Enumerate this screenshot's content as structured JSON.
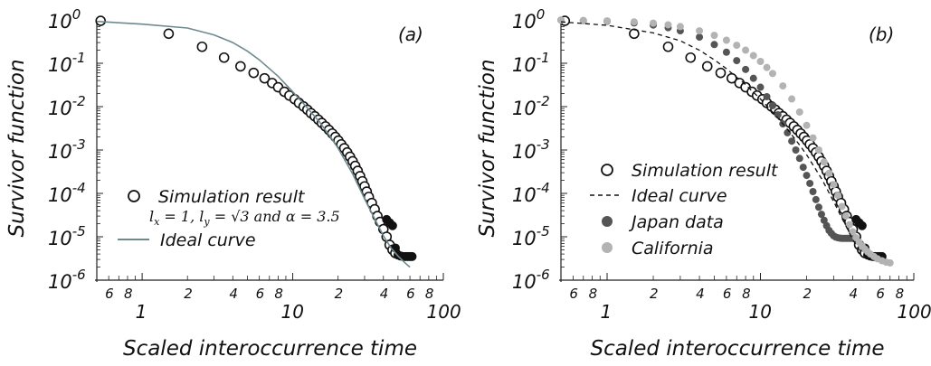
{
  "chart_data": [
    {
      "panel": "(a)",
      "type": "scatter",
      "xscale": "log",
      "yscale": "log",
      "xlim": [
        0.5,
        100
      ],
      "ylim": [
        1e-06,
        1
      ],
      "xlabel": "Scaled interoccurrence time",
      "ylabel": "Survivor function",
      "x_major_ticks": [
        {
          "value": 1,
          "label": "1"
        },
        {
          "value": 10,
          "label": "10"
        },
        {
          "value": 100,
          "label": "100"
        }
      ],
      "x_minor_labels": [
        {
          "value": 0.6,
          "label": "6"
        },
        {
          "value": 0.8,
          "label": "8"
        },
        {
          "value": 2,
          "label": "2"
        },
        {
          "value": 4,
          "label": "4"
        },
        {
          "value": 6,
          "label": "6"
        },
        {
          "value": 8,
          "label": "8"
        },
        {
          "value": 20,
          "label": "2"
        },
        {
          "value": 40,
          "label": "4"
        },
        {
          "value": 60,
          "label": "6"
        },
        {
          "value": 80,
          "label": "8"
        }
      ],
      "y_ticks": [
        {
          "value": 1,
          "base": "10",
          "exp": "0"
        },
        {
          "value": 0.1,
          "base": "10",
          "exp": "-1"
        },
        {
          "value": 0.01,
          "base": "10",
          "exp": "-2"
        },
        {
          "value": 0.001,
          "base": "10",
          "exp": "-3"
        },
        {
          "value": 0.0001,
          "base": "10",
          "exp": "-4"
        },
        {
          "value": 1e-05,
          "base": "10",
          "exp": "-5"
        },
        {
          "value": 1e-06,
          "base": "10",
          "exp": "-6"
        }
      ],
      "legend": {
        "placement": "bottom-left",
        "entries": [
          {
            "label": "Simulation result",
            "marker": "open-circle"
          },
          {
            "label": "Ideal curve",
            "marker": "solid-line",
            "color": "#6f8a8f"
          }
        ],
        "parameter_note": "l_x = 1, l_y = √3 and α = 3.5",
        "parameter_note_parts": [
          "l",
          "x",
          " = 1, ",
          "l",
          "y",
          " = √3 and ",
          "α",
          " = 3.5"
        ]
      },
      "series": [
        {
          "name": "Simulation result",
          "marker": "open-circle",
          "x": [
            0.53,
            1.5,
            2.5,
            3.5,
            4.5,
            5.5,
            6.5,
            7.3,
            8.0,
            8.8,
            9.5,
            10.3,
            11.0,
            11.8,
            12.5,
            13.2,
            14.0,
            14.8,
            15.6,
            16.5,
            17.4,
            18.3,
            19.2,
            20.1,
            21.0,
            22.0,
            23.0,
            24.0,
            25.0,
            26.0,
            27.0,
            28.0,
            29.0,
            30.0,
            31.0,
            32.0,
            33.5,
            35.0,
            36.5,
            38.0,
            40.0,
            42.0,
            44.0,
            46.0,
            48.0
          ],
          "y": [
            0.95,
            0.48,
            0.24,
            0.135,
            0.085,
            0.06,
            0.045,
            0.035,
            0.028,
            0.022,
            0.018,
            0.0148,
            0.0122,
            0.0101,
            0.0085,
            0.0071,
            0.006,
            0.005,
            0.0042,
            0.0035,
            0.0029,
            0.0024,
            0.002,
            0.00165,
            0.00135,
            0.0011,
            0.00088,
            0.0007,
            0.00055,
            0.00043,
            0.00033,
            0.00025,
            0.00019,
            0.000145,
            0.00011,
            8.3e-05,
            6e-05,
            4.3e-05,
            3e-05,
            2.2e-05,
            1.5e-05,
            1e-05,
            6.5e-06,
            5e-06,
            4.2e-06
          ]
        },
        {
          "name": "Simulation result (tail)",
          "marker": "filled-circle",
          "x": [
            42,
            44,
            46,
            48,
            50,
            52,
            54,
            56,
            58,
            60,
            62
          ],
          "y": [
            2.5e-05,
            2.1e-05,
            1.8e-05,
            5.5e-06,
            3.8e-06,
            3.6e-06,
            3.5e-06,
            3.5e-06,
            3.5e-06,
            3.5e-06,
            3.5e-06
          ]
        },
        {
          "name": "Ideal curve",
          "marker": "line",
          "color": "#6f8a8f",
          "x": [
            0.5,
            1.0,
            2.0,
            3.0,
            4.0,
            5.0,
            6.0,
            8.0,
            10.0,
            12.0,
            15.0,
            18.0,
            20.0,
            25.0,
            30.0,
            35.0,
            40.0,
            45.0,
            50.0,
            55.0,
            60.0
          ],
          "y": [
            0.92,
            0.8,
            0.65,
            0.45,
            0.3,
            0.19,
            0.12,
            0.05,
            0.022,
            0.011,
            0.0045,
            0.0019,
            0.0011,
            0.00028,
            7.5e-05,
            2.6e-05,
            1.05e-05,
            5.5e-06,
            3.6e-06,
            2.6e-06,
            2e-06
          ]
        }
      ]
    },
    {
      "panel": "(b)",
      "type": "scatter",
      "xscale": "log",
      "yscale": "log",
      "xlim": [
        0.5,
        100
      ],
      "ylim": [
        1e-06,
        1
      ],
      "xlabel": "Scaled interoccurrence time",
      "ylabel": "Survivor function",
      "x_major_ticks": [
        {
          "value": 1,
          "label": "1"
        },
        {
          "value": 10,
          "label": "10"
        },
        {
          "value": 100,
          "label": "100"
        }
      ],
      "x_minor_labels": [
        {
          "value": 0.6,
          "label": "6"
        },
        {
          "value": 0.8,
          "label": "8"
        },
        {
          "value": 2,
          "label": "2"
        },
        {
          "value": 4,
          "label": "4"
        },
        {
          "value": 6,
          "label": "6"
        },
        {
          "value": 8,
          "label": "8"
        },
        {
          "value": 20,
          "label": "2"
        },
        {
          "value": 40,
          "label": "4"
        },
        {
          "value": 60,
          "label": "6"
        },
        {
          "value": 80,
          "label": "8"
        }
      ],
      "y_ticks": [
        {
          "value": 1,
          "base": "10",
          "exp": "0"
        },
        {
          "value": 0.1,
          "base": "10",
          "exp": "-1"
        },
        {
          "value": 0.01,
          "base": "10",
          "exp": "-2"
        },
        {
          "value": 0.001,
          "base": "10",
          "exp": "-3"
        },
        {
          "value": 0.0001,
          "base": "10",
          "exp": "-4"
        },
        {
          "value": 1e-05,
          "base": "10",
          "exp": "-5"
        },
        {
          "value": 1e-06,
          "base": "10",
          "exp": "-6"
        }
      ],
      "legend": {
        "placement": "center-left",
        "entries": [
          {
            "label": "Simulation result",
            "marker": "open-circle"
          },
          {
            "label": "Ideal curve",
            "marker": "dashed-line"
          },
          {
            "label": "Japan data",
            "marker": "filled-circle",
            "color": "#555555"
          },
          {
            "label": "California",
            "marker": "filled-circle",
            "color": "#b3b3b3"
          }
        ]
      },
      "series": [
        {
          "name": "Simulation result",
          "marker": "open-circle",
          "x": [
            0.53,
            1.5,
            2.5,
            3.5,
            4.5,
            5.5,
            6.5,
            7.3,
            8.0,
            8.8,
            9.5,
            10.3,
            11.0,
            11.8,
            12.5,
            13.2,
            14.0,
            14.8,
            15.6,
            16.5,
            17.4,
            18.3,
            19.2,
            20.1,
            21.0,
            22.0,
            23.0,
            24.0,
            25.0,
            26.0,
            27.0,
            28.0,
            29.0,
            30.0,
            31.0,
            32.0,
            33.5,
            35.0,
            36.5,
            38.0,
            40.0,
            42.0,
            44.0,
            46.0,
            48.0
          ],
          "y": [
            0.95,
            0.48,
            0.24,
            0.135,
            0.085,
            0.06,
            0.045,
            0.035,
            0.028,
            0.022,
            0.018,
            0.0148,
            0.0122,
            0.0101,
            0.0085,
            0.0071,
            0.006,
            0.005,
            0.0042,
            0.0035,
            0.0029,
            0.0024,
            0.002,
            0.00165,
            0.00135,
            0.0011,
            0.00088,
            0.0007,
            0.00055,
            0.00043,
            0.00033,
            0.00025,
            0.00019,
            0.000145,
            0.00011,
            8.3e-05,
            6e-05,
            4.3e-05,
            3e-05,
            2.2e-05,
            1.5e-05,
            1e-05,
            6.5e-06,
            5e-06,
            4.2e-06
          ]
        },
        {
          "name": "Simulation result (tail)",
          "marker": "filled-circle",
          "x": [
            42,
            44,
            46,
            48,
            50,
            52,
            54,
            56,
            58,
            60,
            62
          ],
          "y": [
            2.5e-05,
            2.1e-05,
            1.8e-05,
            5.5e-06,
            3.8e-06,
            3.6e-06,
            3.5e-06,
            3.5e-06,
            3.5e-06,
            3.5e-06,
            3.5e-06
          ]
        },
        {
          "name": "Ideal curve",
          "marker": "dashed-line",
          "x": [
            0.5,
            1.0,
            2.0,
            3.0,
            4.0,
            5.0,
            6.0,
            8.0,
            10.0,
            12.0,
            15.0,
            18.0,
            20.0,
            25.0,
            30.0,
            35.0,
            40.0,
            45.0
          ],
          "y": [
            0.9,
            0.75,
            0.5,
            0.33,
            0.2,
            0.12,
            0.075,
            0.032,
            0.015,
            0.0075,
            0.003,
            0.0013,
            0.00078,
            0.00022,
            6.5e-05,
            2.2e-05,
            8.5e-06,
            4.5e-06
          ]
        },
        {
          "name": "Japan data",
          "marker": "filled-circle",
          "color": "#555555",
          "x": [
            0.5,
            0.7,
            1.0,
            1.5,
            2.0,
            2.5,
            3.0,
            4.0,
            5.0,
            6.0,
            7.0,
            8.0,
            9.0,
            10.0,
            11.0,
            12.0,
            13.0,
            14.0,
            15.0,
            16.0,
            17.0,
            18.0,
            19.0,
            20.0,
            21.0,
            22.0,
            23.0,
            24.0,
            25.0,
            26.0,
            27.0,
            28.0,
            29.0,
            30.0,
            31.0,
            32.0,
            33.0,
            34.0,
            35.0,
            36.0,
            37.0,
            38.0,
            39.0,
            40.0
          ],
          "y": [
            0.99,
            0.96,
            0.93,
            0.85,
            0.76,
            0.66,
            0.56,
            0.4,
            0.27,
            0.18,
            0.115,
            0.072,
            0.045,
            0.028,
            0.017,
            0.0105,
            0.0065,
            0.004,
            0.0025,
            0.0016,
            0.001,
            0.00064,
            0.0004,
            0.00026,
            0.00017,
            0.00011,
            7.2e-05,
            4.8e-05,
            3.3e-05,
            2.4e-05,
            1.8e-05,
            1.4e-05,
            1.2e-05,
            1.05e-05,
            9.8e-06,
            9.5e-06,
            9.3e-06,
            9.2e-06,
            9.2e-06,
            9.2e-06,
            9.2e-06,
            9.2e-06,
            9.2e-06,
            9.2e-06
          ]
        },
        {
          "name": "California",
          "marker": "filled-circle",
          "color": "#b3b3b3",
          "x": [
            0.5,
            0.7,
            1.0,
            1.5,
            2.0,
            2.5,
            3.0,
            4.0,
            5.0,
            6.0,
            7.0,
            8.0,
            9.0,
            10.0,
            11.0,
            12.0,
            14.0,
            16.0,
            18.0,
            20.0,
            22.0,
            24.0,
            26.0,
            28.0,
            30.0,
            32.0,
            34.0,
            36.0,
            38.0,
            40.0,
            42.0,
            44.0,
            46.0,
            48.0,
            50.0,
            52.0,
            55.0,
            58.0,
            62.0,
            66.0,
            70.0
          ],
          "y": [
            0.99,
            0.97,
            0.95,
            0.9,
            0.84,
            0.77,
            0.7,
            0.56,
            0.44,
            0.34,
            0.26,
            0.2,
            0.15,
            0.11,
            0.08,
            0.058,
            0.03,
            0.015,
            0.0075,
            0.0037,
            0.0019,
            0.001,
            0.00053,
            0.00029,
            0.00016,
            9e-05,
            5e-05,
            3e-05,
            1.9e-05,
            1.3e-05,
            9.5e-06,
            7.5e-06,
            6.2e-06,
            5.2e-06,
            4.5e-06,
            4e-06,
            3.5e-06,
            3.1e-06,
            2.8e-06,
            2.6e-06,
            2.5e-06
          ]
        }
      ]
    }
  ]
}
